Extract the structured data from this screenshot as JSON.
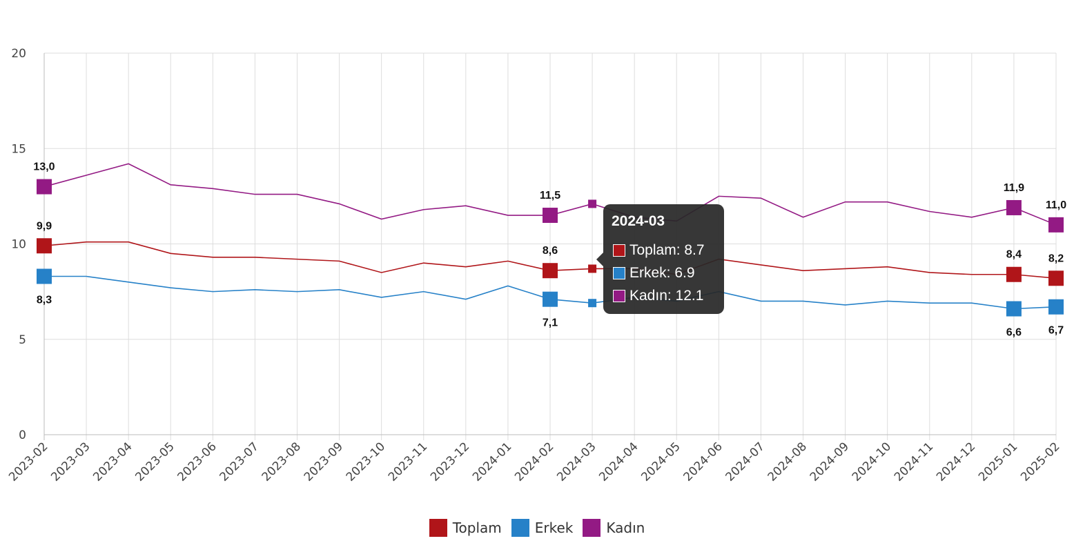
{
  "chart_data": {
    "type": "line",
    "categories": [
      "2023-02",
      "2023-03",
      "2023-04",
      "2023-05",
      "2023-06",
      "2023-07",
      "2023-08",
      "2023-09",
      "2023-10",
      "2023-11",
      "2023-12",
      "2024-01",
      "2024-02",
      "2024-03",
      "2024-04",
      "2024-05",
      "2024-06",
      "2024-07",
      "2024-08",
      "2024-09",
      "2024-10",
      "2024-11",
      "2024-12",
      "2025-01",
      "2025-02"
    ],
    "series": [
      {
        "name": "Toplam",
        "color": "#b01519",
        "values": [
          9.9,
          10.1,
          10.1,
          9.5,
          9.3,
          9.3,
          9.2,
          9.1,
          8.5,
          9.0,
          8.8,
          9.1,
          8.6,
          8.7,
          8.7,
          8.4,
          9.2,
          8.9,
          8.6,
          8.7,
          8.8,
          8.5,
          8.4,
          8.4,
          8.2
        ]
      },
      {
        "name": "Erkek",
        "color": "#2681c8",
        "values": [
          8.3,
          8.3,
          8.0,
          7.7,
          7.5,
          7.6,
          7.5,
          7.6,
          7.2,
          7.5,
          7.1,
          7.8,
          7.1,
          6.9,
          7.2,
          7.0,
          7.5,
          7.0,
          7.0,
          6.8,
          7.0,
          6.9,
          6.9,
          6.6,
          6.7
        ]
      },
      {
        "name": "Kadın",
        "color": "#931a84",
        "values": [
          13.0,
          13.6,
          14.2,
          13.1,
          12.9,
          12.6,
          12.6,
          12.1,
          11.3,
          11.8,
          12.0,
          11.5,
          11.5,
          12.1,
          11.4,
          11.2,
          12.5,
          12.4,
          11.4,
          12.2,
          12.2,
          11.7,
          11.4,
          11.9,
          11.0
        ]
      }
    ],
    "labeled_indices": [
      0,
      12,
      23,
      24
    ],
    "ylim": [
      0,
      20
    ],
    "yticks": [
      "0",
      "5",
      "10",
      "15",
      "20"
    ],
    "grid": true,
    "legend": "bottom"
  },
  "tooltip": {
    "title": "2024-03",
    "rows": [
      {
        "label": "Toplam: 8.7",
        "color": "#b01519"
      },
      {
        "label": "Erkek: 6.9",
        "color": "#2681c8"
      },
      {
        "label": "Kadın: 12.1",
        "color": "#931a84"
      }
    ]
  }
}
